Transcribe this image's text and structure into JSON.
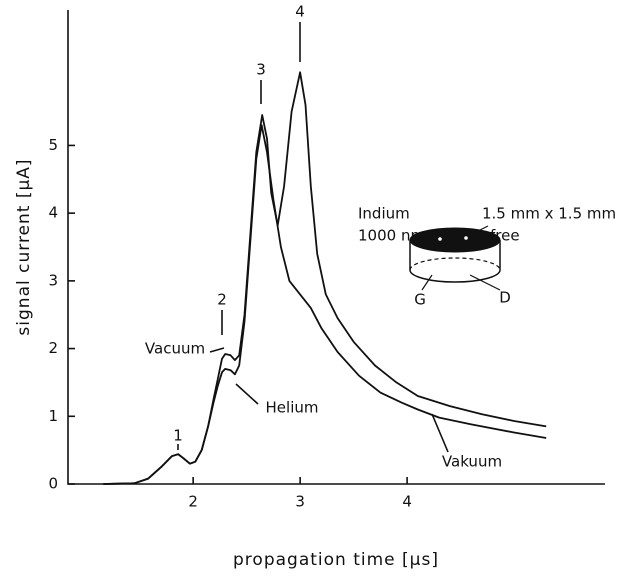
{
  "chart_data": {
    "type": "line",
    "xlabel": "propagation time [µs]",
    "ylabel": "signal current [µA]",
    "xlim": [
      0.83,
      5.85
    ],
    "ylim": [
      0,
      7.0
    ],
    "xticks": [
      2,
      3,
      4
    ],
    "yticks": [
      0,
      1,
      2,
      3,
      4,
      5
    ],
    "color": "#111111",
    "series": [
      {
        "name": "Vacuum",
        "x": [
          1.16,
          1.45,
          1.58,
          1.7,
          1.8,
          1.86,
          1.91,
          1.97,
          2.02,
          2.08,
          2.14,
          2.19,
          2.23,
          2.27,
          2.3,
          2.35,
          2.39,
          2.43,
          2.48,
          2.54,
          2.59,
          2.645,
          2.69,
          2.73,
          2.79,
          2.85,
          2.92,
          3.0,
          3.05,
          3.1,
          3.16,
          3.24,
          3.35,
          3.5,
          3.7,
          3.9,
          4.1,
          4.4,
          4.7,
          5.0,
          5.3
        ],
        "values": [
          0,
          0.01,
          0.08,
          0.25,
          0.41,
          0.44,
          0.38,
          0.3,
          0.33,
          0.5,
          0.85,
          1.25,
          1.55,
          1.85,
          1.92,
          1.9,
          1.83,
          1.9,
          2.5,
          3.8,
          4.9,
          5.45,
          5.1,
          4.3,
          3.82,
          4.4,
          5.5,
          6.08,
          5.6,
          4.4,
          3.4,
          2.8,
          2.45,
          2.1,
          1.75,
          1.5,
          1.3,
          1.15,
          1.03,
          0.93,
          0.85
        ]
      },
      {
        "name": "Helium",
        "x": [
          1.16,
          1.45,
          1.58,
          1.7,
          1.8,
          1.86,
          1.91,
          1.97,
          2.02,
          2.08,
          2.14,
          2.19,
          2.23,
          2.27,
          2.3,
          2.35,
          2.39,
          2.43,
          2.48,
          2.54,
          2.59,
          2.64,
          2.69,
          2.75,
          2.82,
          2.9,
          3.0,
          3.1,
          3.2,
          3.35,
          3.55,
          3.75,
          3.95,
          4.1,
          4.3,
          4.6,
          5.0,
          5.3
        ],
        "values": [
          0,
          0.01,
          0.08,
          0.25,
          0.41,
          0.44,
          0.38,
          0.3,
          0.33,
          0.5,
          0.85,
          1.2,
          1.45,
          1.65,
          1.7,
          1.68,
          1.62,
          1.75,
          2.4,
          3.7,
          4.8,
          5.3,
          4.9,
          4.2,
          3.5,
          3.0,
          2.8,
          2.6,
          2.3,
          1.95,
          1.6,
          1.35,
          1.2,
          1.1,
          0.98,
          0.88,
          0.76,
          0.68
        ]
      }
    ],
    "annotations": [
      "1",
      "2",
      "3",
      "4",
      "Vacuum",
      "Helium",
      "Vakuum"
    ],
    "inset_labels": [
      "Indium",
      "1000 nm",
      "1.5 mm x 1.5 mm",
      "free",
      "G",
      "D"
    ]
  }
}
